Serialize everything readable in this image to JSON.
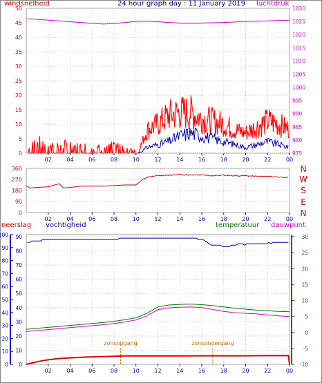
{
  "header": {
    "title": "24 hour graph day : 11 January 2019",
    "left_label": "windsnelheid",
    "right_label": "luchtdruk"
  },
  "direction_letters": [
    "N",
    "W",
    "S",
    "E",
    "N"
  ],
  "bottom_labels": {
    "rain": "neerslag",
    "humidity": "vochtigheid",
    "temperature": "temperatuur",
    "dewpoint": "dauwpunt"
  },
  "annotations": {
    "sunrise": "zonsopgang",
    "sunset": "zonsondergang"
  },
  "colors": {
    "wind": "#ff0000",
    "gust_avg": "#0000aa",
    "pressure": "#cc00cc",
    "direction": "#cc0000",
    "humidity": "#0000aa",
    "temperature": "#007700",
    "dewpoint": "#cc00cc",
    "rain": "#dd0000",
    "sun_marker": "#cc6600",
    "grid": "#c8c8c8"
  },
  "chart_data": [
    {
      "type": "line",
      "name": "wind-pressure",
      "xlabel": "",
      "x_ticks": [
        "02",
        "04",
        "06",
        "08",
        "10",
        "12",
        "14",
        "16",
        "18",
        "20",
        "22",
        "00"
      ],
      "ylabel_left": "windsnelheid",
      "ylim_left": [
        0,
        50
      ],
      "yticks_left": [
        0,
        5,
        10,
        15,
        20,
        25,
        30,
        35,
        40,
        45,
        50
      ],
      "ylabel_right": "luchtdruk",
      "ylim_right": [
        975,
        1030
      ],
      "yticks_right": [
        975,
        980,
        985,
        990,
        995,
        1000,
        1005,
        1010,
        1015,
        1020,
        1025,
        1030
      ],
      "series": [
        {
          "axis": "right",
          "color": "#cc00cc",
          "x": [
            0,
            1,
            2,
            3,
            4,
            5,
            6,
            7,
            8,
            9,
            10,
            11,
            12,
            13,
            14,
            15,
            16,
            17,
            18,
            19,
            20,
            21,
            22,
            23,
            24
          ],
          "values": [
            1026.0,
            1025.8,
            1025.5,
            1025.2,
            1024.9,
            1024.6,
            1024.3,
            1024.0,
            1024.2,
            1024.6,
            1025.0,
            1025.1,
            1024.9,
            1024.6,
            1024.4,
            1024.3,
            1024.4,
            1024.5,
            1024.6,
            1024.8,
            1025.0,
            1025.1,
            1025.2,
            1025.4,
            1025.5
          ]
        },
        {
          "axis": "left",
          "color": "#ff0000",
          "x": [
            0,
            1,
            2,
            3,
            4,
            5,
            6,
            7,
            8,
            9,
            10,
            10.5,
            11,
            12,
            13,
            14,
            15,
            16,
            17,
            18,
            19,
            20,
            21,
            22,
            23,
            24
          ],
          "values": [
            3,
            4,
            3,
            3,
            3,
            2,
            3,
            2,
            3,
            2,
            1,
            3,
            8,
            10,
            13,
            14,
            14,
            12,
            11,
            10,
            8,
            7,
            9,
            11,
            10,
            8
          ]
        },
        {
          "axis": "left",
          "color": "#0000aa",
          "x": [
            10,
            10.5,
            11,
            12,
            13,
            14,
            15,
            16,
            17,
            18,
            19,
            20,
            21,
            22,
            23,
            24
          ],
          "values": [
            0,
            0.5,
            2,
            3,
            4,
            6,
            7,
            6,
            5,
            4,
            3,
            2,
            3,
            4,
            3,
            2
          ]
        }
      ]
    },
    {
      "type": "line",
      "name": "wind-direction",
      "xlabel": "",
      "x_ticks": [
        "02",
        "04",
        "06",
        "08",
        "10",
        "12",
        "14",
        "16",
        "18",
        "20",
        "22",
        "00"
      ],
      "ylim": [
        0,
        360
      ],
      "yticks": [
        0,
        90,
        180,
        270,
        360
      ],
      "series": [
        {
          "color": "#cc0000",
          "x": [
            0,
            0.3,
            1,
            2,
            3,
            3.4,
            4,
            5,
            6,
            7,
            8,
            9,
            10,
            10.5,
            11,
            12,
            13,
            14,
            15,
            16,
            17,
            18,
            19,
            20,
            21,
            22,
            23,
            24
          ],
          "values": [
            220,
            200,
            205,
            210,
            235,
            200,
            205,
            215,
            215,
            215,
            220,
            225,
            225,
            260,
            290,
            300,
            305,
            310,
            305,
            305,
            300,
            305,
            300,
            300,
            295,
            295,
            290,
            285
          ]
        }
      ]
    },
    {
      "type": "line",
      "name": "rain-humidity-temperature",
      "xlabel": "",
      "x_ticks": [
        "02",
        "04",
        "06",
        "08",
        "10",
        "12",
        "14",
        "16",
        "18",
        "20",
        "22",
        "00"
      ],
      "ylim_left": [
        0,
        100
      ],
      "yticks_left": [
        0,
        10,
        20,
        30,
        40,
        50,
        60,
        70,
        80,
        90,
        100
      ],
      "ylim_left_inner": [
        0,
        90
      ],
      "yticks_left_inner": [
        0,
        10,
        20,
        30,
        40,
        50,
        60,
        70,
        80,
        90
      ],
      "ylim_right": [
        -10,
        30
      ],
      "yticks_right": [
        -10,
        -5,
        0,
        5,
        10,
        15,
        20,
        25,
        30
      ],
      "series": [
        {
          "axis": "inner",
          "color": "#0000aa",
          "label": "vochtigheid",
          "x": [
            0,
            1,
            2,
            3,
            4,
            5,
            6,
            7,
            8,
            9,
            10,
            11,
            12,
            13,
            14,
            15,
            16,
            17,
            18,
            19,
            20,
            21,
            22,
            23,
            24
          ],
          "values": [
            86,
            87,
            88,
            88,
            88,
            88,
            88,
            88,
            88,
            89,
            89,
            89,
            89,
            89,
            89,
            89,
            88,
            84,
            83,
            84,
            85,
            85,
            85,
            86,
            86
          ]
        },
        {
          "axis": "right",
          "color": "#007700",
          "label": "temperatuur",
          "x": [
            0,
            1,
            2,
            3,
            4,
            5,
            6,
            7,
            8,
            9,
            10,
            11,
            12,
            13,
            14,
            15,
            16,
            17,
            18,
            19,
            20,
            21,
            22,
            23,
            24
          ],
          "values": [
            1.0,
            1.3,
            1.6,
            1.9,
            2.2,
            2.5,
            2.8,
            3.1,
            3.5,
            4.0,
            4.6,
            6.0,
            8.0,
            8.6,
            8.8,
            8.9,
            8.7,
            8.4,
            8.0,
            7.6,
            7.3,
            7.0,
            6.8,
            6.6,
            6.5
          ]
        },
        {
          "axis": "right",
          "color": "#cc00cc",
          "label": "dauwpunt",
          "x": [
            0,
            1,
            2,
            3,
            4,
            5,
            6,
            7,
            8,
            9,
            10,
            11,
            12,
            13,
            14,
            15,
            16,
            17,
            18,
            19,
            20,
            21,
            22,
            23,
            24
          ],
          "values": [
            0.3,
            0.6,
            0.9,
            1.2,
            1.5,
            1.8,
            2.1,
            2.4,
            2.8,
            3.3,
            3.9,
            5.2,
            7.1,
            7.7,
            7.9,
            8.0,
            7.8,
            7.2,
            6.6,
            6.2,
            6.0,
            5.8,
            5.5,
            5.2,
            5.0
          ]
        },
        {
          "axis": "left",
          "color": "#dd0000",
          "label": "neerslag",
          "x": [
            0,
            0.5,
            1,
            1.5,
            2,
            3,
            4,
            5,
            6,
            7,
            8,
            9,
            12,
            16,
            20,
            23.9,
            24
          ],
          "values": [
            0,
            1,
            2,
            2.8,
            3.5,
            4.5,
            5.0,
            5.5,
            5.8,
            6.0,
            6.2,
            6.5,
            6.5,
            6.6,
            6.6,
            6.8,
            0
          ]
        }
      ],
      "markers": [
        {
          "x": 8.6,
          "label": "zonsopgang"
        },
        {
          "x": 17.0,
          "label": "zonsondergang"
        }
      ]
    }
  ]
}
